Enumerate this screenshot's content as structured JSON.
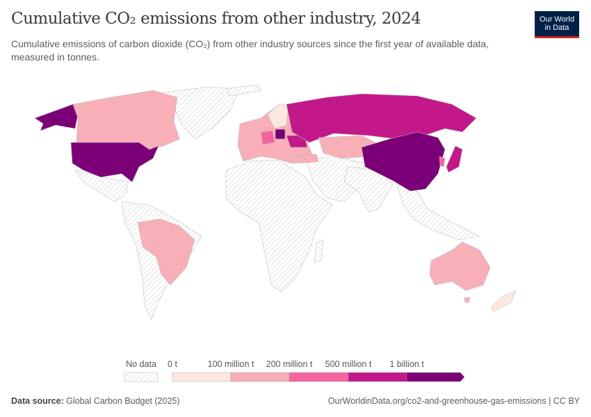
{
  "title": "Cumulative CO₂ emissions from other industry, 2024",
  "subtitle": "Cumulative emissions of carbon dioxide (CO₂) from other industry sources since the first year of available data, measured in tonnes.",
  "logo": {
    "line1": "Our World",
    "line2": "in Data"
  },
  "legend": {
    "no_data_label": "No data",
    "no_data_color": "#e6e6e6",
    "bins": [
      {
        "label": "0 t",
        "color": "#fde8df"
      },
      {
        "label": "100 million t",
        "color": "#f8afb8"
      },
      {
        "label": "200 million t",
        "color": "#f564a0"
      },
      {
        "label": "500 million t",
        "color": "#c3188a"
      },
      {
        "label": "1 billion t",
        "color": "#7b0078"
      }
    ]
  },
  "footer": {
    "source_label": "Data source:",
    "source": "Global Carbon Budget (2025)",
    "url": "OurWorldinData.org/co2-and-greenhouse-gas-emissions | CC BY"
  }
}
